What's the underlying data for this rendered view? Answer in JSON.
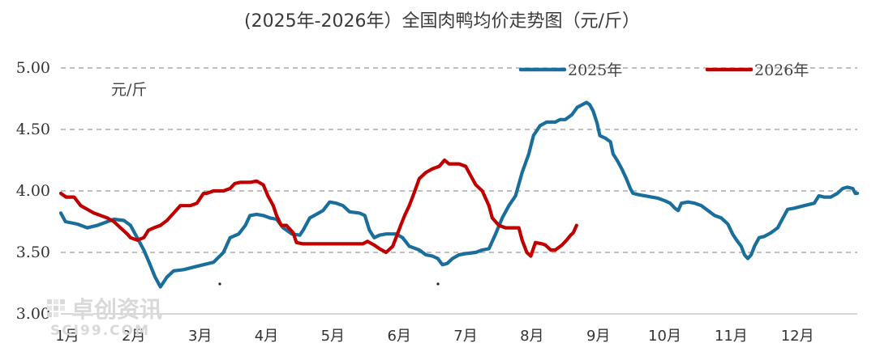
{
  "chart_data": {
    "type": "line",
    "title": "(2025年-2026年）全国肉鸭均价走势图（元/斤）",
    "unit_label": "元/斤",
    "ylim": [
      3.0,
      5.0
    ],
    "yticks": [
      "3.00",
      "3.50",
      "4.00",
      "4.50",
      "5.00"
    ],
    "xlim": [
      0,
      12
    ],
    "categories": [
      "1月",
      "2月",
      "3月",
      "4月",
      "5月",
      "6月",
      "7月",
      "8月",
      "9月",
      "10月",
      "11月",
      "12月"
    ],
    "grid": "horizontal dashed",
    "legend_position": "top-right",
    "watermark": "卓创资讯 SCI99.COM",
    "series": [
      {
        "name": "2025年",
        "color": "#1a6e9b",
        "points": [
          [
            0.0,
            3.82
          ],
          [
            0.07,
            3.75
          ],
          [
            0.25,
            3.73
          ],
          [
            0.4,
            3.7
          ],
          [
            0.55,
            3.72
          ],
          [
            0.7,
            3.75
          ],
          [
            0.8,
            3.77
          ],
          [
            0.95,
            3.76
          ],
          [
            1.05,
            3.72
          ],
          [
            1.15,
            3.62
          ],
          [
            1.25,
            3.52
          ],
          [
            1.33,
            3.42
          ],
          [
            1.42,
            3.3
          ],
          [
            1.5,
            3.22
          ],
          [
            1.6,
            3.3
          ],
          [
            1.7,
            3.35
          ],
          [
            1.85,
            3.36
          ],
          [
            2.0,
            3.38
          ],
          [
            2.15,
            3.4
          ],
          [
            2.3,
            3.42
          ],
          [
            2.45,
            3.5
          ],
          [
            2.55,
            3.62
          ],
          [
            2.68,
            3.65
          ],
          [
            2.78,
            3.72
          ],
          [
            2.85,
            3.8
          ],
          [
            2.95,
            3.81
          ],
          [
            3.05,
            3.8
          ],
          [
            3.15,
            3.78
          ],
          [
            3.25,
            3.77
          ],
          [
            3.35,
            3.7
          ],
          [
            3.48,
            3.65
          ],
          [
            3.6,
            3.64
          ],
          [
            3.65,
            3.68
          ],
          [
            3.75,
            3.78
          ],
          [
            3.85,
            3.81
          ],
          [
            3.95,
            3.84
          ],
          [
            4.05,
            3.91
          ],
          [
            4.15,
            3.9
          ],
          [
            4.25,
            3.88
          ],
          [
            4.35,
            3.83
          ],
          [
            4.5,
            3.82
          ],
          [
            4.58,
            3.8
          ],
          [
            4.65,
            3.68
          ],
          [
            4.72,
            3.62
          ],
          [
            4.8,
            3.64
          ],
          [
            4.9,
            3.65
          ],
          [
            5.05,
            3.65
          ],
          [
            5.15,
            3.62
          ],
          [
            5.25,
            3.55
          ],
          [
            5.4,
            3.52
          ],
          [
            5.5,
            3.48
          ],
          [
            5.6,
            3.47
          ],
          [
            5.68,
            3.45
          ],
          [
            5.75,
            3.4
          ],
          [
            5.82,
            3.41
          ],
          [
            5.9,
            3.45
          ],
          [
            6.0,
            3.48
          ],
          [
            6.1,
            3.49
          ],
          [
            6.25,
            3.5
          ],
          [
            6.35,
            3.52
          ],
          [
            6.45,
            3.53
          ],
          [
            6.55,
            3.65
          ],
          [
            6.65,
            3.78
          ],
          [
            6.75,
            3.88
          ],
          [
            6.85,
            3.96
          ],
          [
            6.95,
            4.15
          ],
          [
            7.05,
            4.3
          ],
          [
            7.12,
            4.45
          ],
          [
            7.22,
            4.53
          ],
          [
            7.32,
            4.56
          ],
          [
            7.45,
            4.56
          ],
          [
            7.52,
            4.58
          ],
          [
            7.6,
            4.58
          ],
          [
            7.7,
            4.62
          ],
          [
            7.78,
            4.68
          ],
          [
            7.85,
            4.7
          ],
          [
            7.92,
            4.72
          ],
          [
            7.97,
            4.7
          ],
          [
            8.02,
            4.65
          ],
          [
            8.08,
            4.55
          ],
          [
            8.12,
            4.45
          ],
          [
            8.2,
            4.43
          ],
          [
            8.28,
            4.4
          ],
          [
            8.32,
            4.3
          ],
          [
            8.38,
            4.25
          ],
          [
            8.45,
            4.18
          ],
          [
            8.52,
            4.1
          ],
          [
            8.58,
            4.02
          ],
          [
            8.62,
            3.98
          ],
          [
            8.7,
            3.97
          ],
          [
            8.8,
            3.96
          ],
          [
            8.9,
            3.95
          ],
          [
            9.0,
            3.94
          ],
          [
            9.1,
            3.92
          ],
          [
            9.18,
            3.9
          ],
          [
            9.25,
            3.86
          ],
          [
            9.3,
            3.84
          ],
          [
            9.35,
            3.9
          ],
          [
            9.45,
            3.91
          ],
          [
            9.55,
            3.9
          ],
          [
            9.65,
            3.88
          ],
          [
            9.75,
            3.84
          ],
          [
            9.85,
            3.8
          ],
          [
            9.95,
            3.78
          ],
          [
            10.05,
            3.73
          ],
          [
            10.12,
            3.65
          ],
          [
            10.18,
            3.6
          ],
          [
            10.25,
            3.55
          ],
          [
            10.3,
            3.48
          ],
          [
            10.35,
            3.45
          ],
          [
            10.4,
            3.48
          ],
          [
            10.45,
            3.55
          ],
          [
            10.52,
            3.62
          ],
          [
            10.6,
            3.63
          ],
          [
            10.7,
            3.66
          ],
          [
            10.8,
            3.7
          ],
          [
            10.88,
            3.78
          ],
          [
            10.95,
            3.85
          ],
          [
            11.05,
            3.86
          ],
          [
            11.2,
            3.88
          ],
          [
            11.35,
            3.9
          ],
          [
            11.42,
            3.96
          ],
          [
            11.5,
            3.95
          ],
          [
            11.6,
            3.95
          ],
          [
            11.7,
            3.98
          ],
          [
            11.78,
            4.02
          ],
          [
            11.85,
            4.03
          ],
          [
            11.93,
            4.02
          ],
          [
            11.97,
            3.98
          ],
          [
            12.0,
            3.98
          ]
        ]
      },
      {
        "name": "2026年",
        "color": "#c00000",
        "points": [
          [
            0.0,
            3.98
          ],
          [
            0.08,
            3.95
          ],
          [
            0.2,
            3.95
          ],
          [
            0.3,
            3.88
          ],
          [
            0.4,
            3.85
          ],
          [
            0.5,
            3.82
          ],
          [
            0.6,
            3.8
          ],
          [
            0.7,
            3.78
          ],
          [
            0.8,
            3.75
          ],
          [
            0.9,
            3.7
          ],
          [
            1.0,
            3.65
          ],
          [
            1.05,
            3.62
          ],
          [
            1.15,
            3.6
          ],
          [
            1.25,
            3.62
          ],
          [
            1.32,
            3.68
          ],
          [
            1.4,
            3.7
          ],
          [
            1.5,
            3.72
          ],
          [
            1.6,
            3.76
          ],
          [
            1.7,
            3.82
          ],
          [
            1.8,
            3.88
          ],
          [
            1.95,
            3.88
          ],
          [
            2.05,
            3.9
          ],
          [
            2.15,
            3.98
          ],
          [
            2.2,
            3.98
          ],
          [
            2.3,
            4.0
          ],
          [
            2.45,
            4.0
          ],
          [
            2.55,
            4.02
          ],
          [
            2.62,
            4.06
          ],
          [
            2.7,
            4.07
          ],
          [
            2.85,
            4.07
          ],
          [
            2.95,
            4.08
          ],
          [
            3.05,
            4.05
          ],
          [
            3.12,
            3.96
          ],
          [
            3.2,
            3.88
          ],
          [
            3.25,
            3.8
          ],
          [
            3.32,
            3.72
          ],
          [
            3.4,
            3.72
          ],
          [
            3.5,
            3.66
          ],
          [
            3.55,
            3.58
          ],
          [
            3.65,
            3.57
          ],
          [
            3.8,
            3.57
          ],
          [
            4.0,
            3.57
          ],
          [
            4.2,
            3.57
          ],
          [
            4.4,
            3.57
          ],
          [
            4.55,
            3.57
          ],
          [
            4.62,
            3.59
          ],
          [
            4.72,
            3.56
          ],
          [
            4.8,
            3.53
          ],
          [
            4.9,
            3.5
          ],
          [
            5.0,
            3.55
          ],
          [
            5.05,
            3.62
          ],
          [
            5.12,
            3.72
          ],
          [
            5.18,
            3.8
          ],
          [
            5.25,
            3.88
          ],
          [
            5.32,
            3.98
          ],
          [
            5.4,
            4.1
          ],
          [
            5.5,
            4.15
          ],
          [
            5.6,
            4.18
          ],
          [
            5.7,
            4.2
          ],
          [
            5.78,
            4.25
          ],
          [
            5.85,
            4.22
          ],
          [
            6.0,
            4.22
          ],
          [
            6.1,
            4.2
          ],
          [
            6.18,
            4.12
          ],
          [
            6.25,
            4.05
          ],
          [
            6.35,
            4.0
          ],
          [
            6.45,
            3.88
          ],
          [
            6.5,
            3.78
          ],
          [
            6.6,
            3.72
          ],
          [
            6.7,
            3.7
          ],
          [
            6.8,
            3.7
          ],
          [
            6.9,
            3.7
          ],
          [
            6.95,
            3.6
          ],
          [
            7.02,
            3.5
          ],
          [
            7.08,
            3.47
          ],
          [
            7.15,
            3.58
          ],
          [
            7.25,
            3.57
          ],
          [
            7.3,
            3.56
          ],
          [
            7.38,
            3.52
          ],
          [
            7.45,
            3.52
          ],
          [
            7.55,
            3.56
          ],
          [
            7.62,
            3.6
          ],
          [
            7.68,
            3.64
          ],
          [
            7.72,
            3.66
          ],
          [
            7.77,
            3.72
          ]
        ]
      }
    ]
  }
}
